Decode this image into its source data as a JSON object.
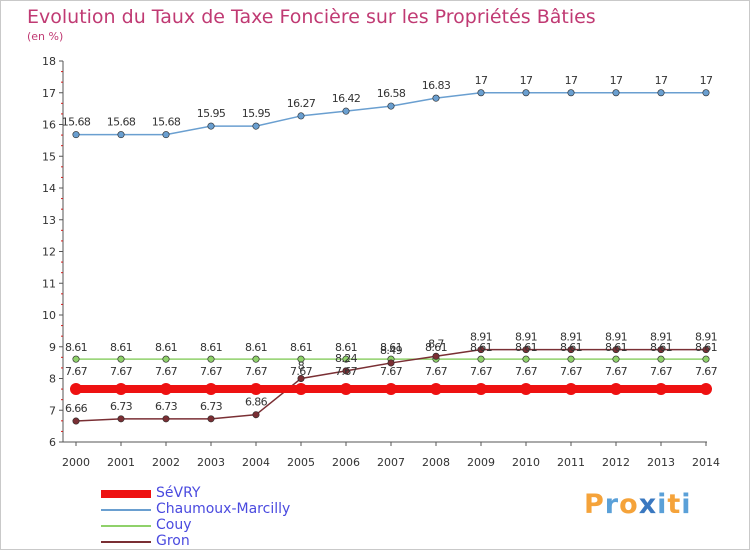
{
  "title": "Evolution du Taux de Taxe Foncière sur les Propriétés Bâties",
  "unit_label": "(en %)",
  "logo": {
    "text": "Proxiti",
    "letters": [
      "P",
      "r",
      "o",
      "x",
      "i",
      "t",
      "i"
    ],
    "colors": [
      "#f5a33a",
      "#5aa0d8",
      "#f5a33a",
      "#3a78c0",
      "#5aa0d8",
      "#f5a33a",
      "#5aa0d8"
    ]
  },
  "chart_data": {
    "type": "line",
    "x": [
      "2000",
      "2001",
      "2002",
      "2003",
      "2004",
      "2005",
      "2006",
      "2007",
      "2008",
      "2009",
      "2010",
      "2011",
      "2012",
      "2013",
      "2014"
    ],
    "ylim": [
      6,
      18
    ],
    "yticks": [
      "6",
      "7",
      "8",
      "9",
      "10",
      "11",
      "12",
      "13",
      "14",
      "15",
      "16",
      "17",
      "18"
    ],
    "grid": false,
    "legend_position": "bottom-left",
    "series": [
      {
        "name": "SéVRY",
        "color": "#ee1111",
        "values": [
          7.67,
          7.67,
          7.67,
          7.67,
          7.67,
          7.67,
          7.67,
          7.67,
          7.67,
          7.67,
          7.67,
          7.67,
          7.67,
          7.67,
          7.67
        ],
        "labels": [
          "7.67",
          "7.67",
          "7.67",
          "7.67",
          "7.67",
          "7.67",
          "7.67",
          "7.67",
          "7.67",
          "7.67",
          "7.67",
          "7.67",
          "7.67",
          "7.67",
          "7.67"
        ]
      },
      {
        "name": "Chaumoux-Marcilly",
        "color": "#6a9fd0",
        "values": [
          15.68,
          15.68,
          15.68,
          15.95,
          15.95,
          16.27,
          16.42,
          16.58,
          16.83,
          17,
          17,
          17,
          17,
          17,
          17
        ],
        "labels": [
          "15.68",
          "15.68",
          "15.68",
          "15.95",
          "15.95",
          "16.27",
          "16.42",
          "16.58",
          "16.83",
          "17",
          "17",
          "17",
          "17",
          "17",
          "17"
        ]
      },
      {
        "name": "Couy",
        "color": "#8fd16a",
        "values": [
          8.61,
          8.61,
          8.61,
          8.61,
          8.61,
          8.61,
          8.61,
          8.61,
          8.61,
          8.61,
          8.61,
          8.61,
          8.61,
          8.61,
          8.61
        ],
        "labels": [
          "8.61",
          "8.61",
          "8.61",
          "8.61",
          "8.61",
          "8.61",
          "8.61",
          "8.61",
          "8.61",
          "8.61",
          "8.61",
          "8.61",
          "8.61",
          "8.61",
          "8.61"
        ]
      },
      {
        "name": "Gron",
        "color": "#7a2f34",
        "values": [
          6.66,
          6.73,
          6.73,
          6.73,
          6.86,
          8,
          8.24,
          8.49,
          8.7,
          8.91,
          8.91,
          8.91,
          8.91,
          8.91,
          8.91
        ],
        "labels": [
          "6.66",
          "6.73",
          "6.73",
          "6.73",
          "6.86",
          "8",
          "8.24",
          "8.49",
          "8.7",
          "8.91",
          "8.91",
          "8.91",
          "8.91",
          "8.91",
          "8.91"
        ]
      }
    ]
  }
}
